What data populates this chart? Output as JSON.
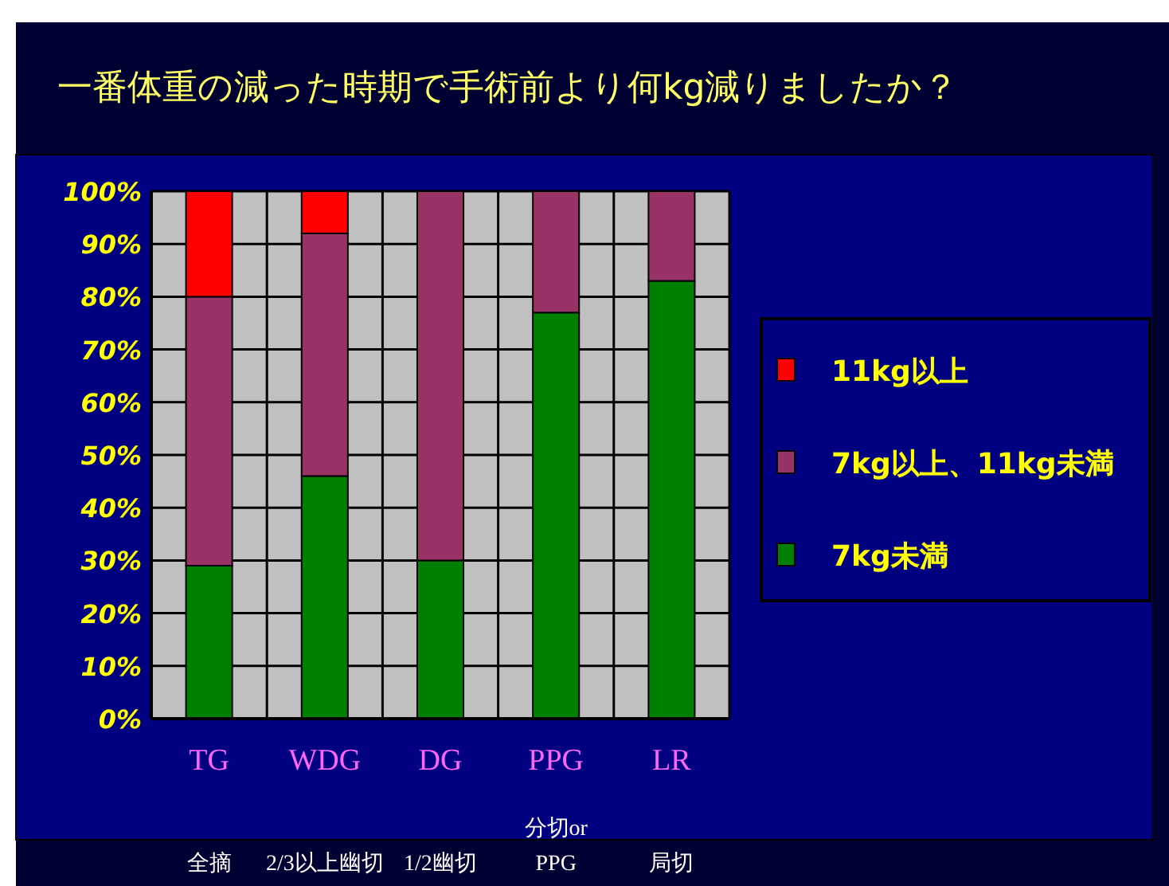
{
  "chart_data": {
    "type": "bar",
    "title": "一番体重の減った時期で手術前より何kg減りましたか？",
    "categories": [
      "TG",
      "WDG",
      "DG",
      "PPG",
      "LR"
    ],
    "series": [
      {
        "name": "7kg未満",
        "color": "#008000",
        "values": [
          29,
          46,
          30,
          77,
          83
        ]
      },
      {
        "name": "7kg以上、11kg未満",
        "color": "#993366",
        "values": [
          51,
          46,
          70,
          23,
          17
        ]
      },
      {
        "name": "11kg以上",
        "color": "#ff0000",
        "values": [
          20,
          8,
          0,
          0,
          0
        ]
      }
    ],
    "stacked": true,
    "ylim": [
      0,
      100
    ],
    "yticks": [
      {
        "value": 0,
        "label": "0%"
      },
      {
        "value": 10,
        "label": "10%"
      },
      {
        "value": 20,
        "label": "20%"
      },
      {
        "value": 30,
        "label": "30%"
      },
      {
        "value": 40,
        "label": "40%"
      },
      {
        "value": 50,
        "label": "50%"
      },
      {
        "value": 60,
        "label": "60%"
      },
      {
        "value": 70,
        "label": "70%"
      },
      {
        "value": 80,
        "label": "80%"
      },
      {
        "value": 90,
        "label": "90%"
      },
      {
        "value": 100,
        "label": "100%"
      }
    ],
    "grid": true,
    "legend": "right",
    "annotations": [
      "全摘",
      "2/3以上幽切",
      "1/2幽切",
      "分切or PPG",
      "局切"
    ]
  }
}
